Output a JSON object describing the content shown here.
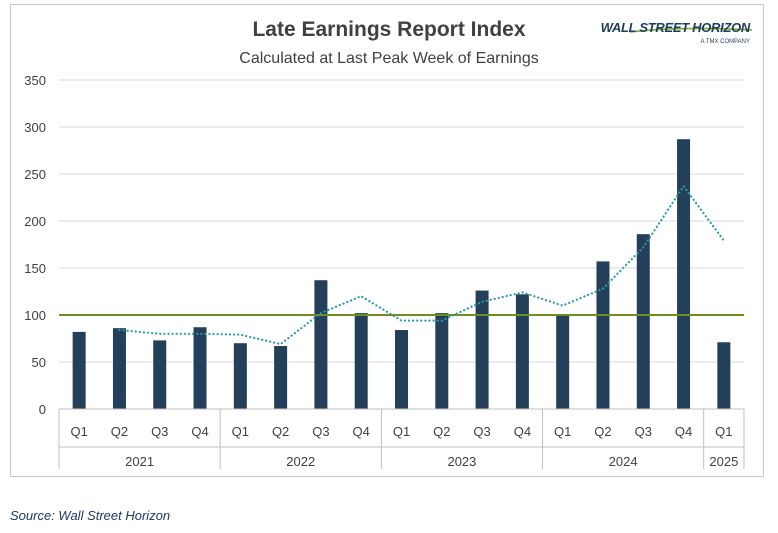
{
  "logo": {
    "name": "WALL STREET HORIZON",
    "sub": "A TMX COMPANY"
  },
  "source": "Source: Wall Street Horizon",
  "colors": {
    "bar": "#243f5a",
    "line": "#2b9aa8",
    "baseline": "#6e8f1e",
    "grid": "#d9d9d9"
  },
  "chart_data": {
    "type": "bar",
    "title": "Late Earnings Report Index",
    "subtitle": "Calculated at Last Peak Week of Earnings",
    "categories": [
      "Q1",
      "Q2",
      "Q3",
      "Q4",
      "Q1",
      "Q2",
      "Q3",
      "Q4",
      "Q1",
      "Q2",
      "Q3",
      "Q4",
      "Q1",
      "Q2",
      "Q3",
      "Q4",
      "Q1"
    ],
    "groups": [
      {
        "label": "2021",
        "count": 4
      },
      {
        "label": "2022",
        "count": 4
      },
      {
        "label": "2023",
        "count": 4
      },
      {
        "label": "2024",
        "count": 4
      },
      {
        "label": "2025",
        "count": 1
      }
    ],
    "series": [
      {
        "type": "bar",
        "values": [
          82,
          86,
          73,
          87,
          70,
          67,
          137,
          102,
          84,
          102,
          126,
          122,
          99,
          157,
          186,
          287,
          71
        ]
      },
      {
        "type": "line",
        "style": "dotted",
        "values": [
          null,
          84,
          80,
          80,
          79,
          69,
          102,
          120,
          94,
          94,
          114,
          124,
          110,
          128,
          172,
          237,
          179
        ]
      }
    ],
    "reference_line": {
      "value": 100
    },
    "yticks": [
      0,
      50,
      100,
      150,
      200,
      250,
      300,
      350
    ],
    "ylim": [
      0,
      350
    ],
    "grid": true,
    "legend": "none"
  }
}
